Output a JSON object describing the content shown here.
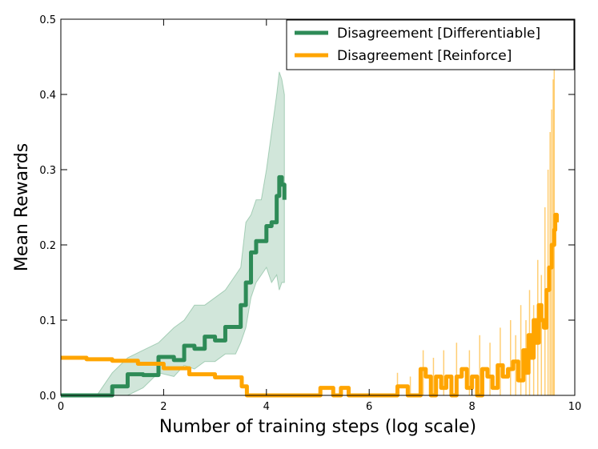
{
  "chart_data": {
    "type": "line",
    "title": "",
    "xlabel": "Number of training steps (log scale)",
    "ylabel": "Mean Rewards",
    "xlim": [
      0,
      10
    ],
    "ylim": [
      0,
      0.5
    ],
    "xticks": [
      0,
      2,
      4,
      6,
      8,
      10
    ],
    "yticks": [
      0.0,
      0.1,
      0.2,
      0.3,
      0.4,
      0.5
    ],
    "xtick_labels": [
      "0",
      "2",
      "4",
      "6",
      "8",
      "10"
    ],
    "ytick_labels": [
      "0.0",
      "0.1",
      "0.2",
      "0.3",
      "0.4",
      "0.5"
    ],
    "grid": false,
    "legend_position": "top-right",
    "series": [
      {
        "name": "Disagreement [Differentiable]",
        "color": "#2e8b57",
        "x": [
          0.0,
          0.7,
          1.0,
          1.3,
          1.6,
          1.9,
          2.2,
          2.4,
          2.6,
          2.8,
          3.0,
          3.2,
          3.4,
          3.5,
          3.6,
          3.7,
          3.8,
          3.9,
          4.0,
          4.1,
          4.2,
          4.25,
          4.3,
          4.35
        ],
        "y": [
          0.0,
          0.0,
          0.012,
          0.028,
          0.027,
          0.051,
          0.047,
          0.066,
          0.062,
          0.078,
          0.073,
          0.091,
          0.091,
          0.12,
          0.15,
          0.19,
          0.205,
          0.205,
          0.225,
          0.23,
          0.265,
          0.29,
          0.28,
          0.26
        ],
        "band_upper": [
          0.0,
          0.0,
          0.03,
          0.05,
          0.06,
          0.07,
          0.09,
          0.1,
          0.12,
          0.12,
          0.13,
          0.14,
          0.16,
          0.17,
          0.23,
          0.24,
          0.26,
          0.26,
          0.3,
          0.35,
          0.4,
          0.43,
          0.42,
          0.4
        ],
        "band_lower": [
          0.0,
          0.0,
          0.0,
          0.0,
          0.01,
          0.03,
          0.025,
          0.04,
          0.035,
          0.045,
          0.045,
          0.055,
          0.055,
          0.07,
          0.09,
          0.13,
          0.15,
          0.16,
          0.17,
          0.15,
          0.16,
          0.14,
          0.15,
          0.15
        ]
      },
      {
        "name": "Disagreement [Reinforce]",
        "color": "#ffa500",
        "x": [
          0.0,
          0.5,
          1.0,
          1.5,
          2.0,
          2.5,
          3.0,
          3.3,
          3.5,
          3.52,
          3.6,
          3.62,
          4.0,
          4.5,
          5.0,
          5.05,
          5.25,
          5.3,
          5.4,
          5.45,
          5.55,
          5.6,
          6.5,
          6.55,
          6.7,
          6.75,
          6.95,
          7.0,
          7.1,
          7.2,
          7.3,
          7.4,
          7.5,
          7.6,
          7.7,
          7.8,
          7.9,
          8.0,
          8.1,
          8.2,
          8.3,
          8.4,
          8.5,
          8.6,
          8.7,
          8.8,
          8.9,
          9.0,
          9.05,
          9.1,
          9.15,
          9.2,
          9.25,
          9.3,
          9.35,
          9.4,
          9.45,
          9.5,
          9.55,
          9.6,
          9.62,
          9.65
        ],
        "y": [
          0.05,
          0.048,
          0.046,
          0.042,
          0.036,
          0.028,
          0.024,
          0.024,
          0.024,
          0.012,
          0.012,
          0.0,
          0.0,
          0.0,
          0.0,
          0.01,
          0.01,
          0.0,
          0.0,
          0.01,
          0.01,
          0.0,
          0.0,
          0.012,
          0.012,
          0.0,
          0.0,
          0.035,
          0.025,
          0.0,
          0.025,
          0.01,
          0.025,
          0.0,
          0.025,
          0.035,
          0.01,
          0.025,
          0.0,
          0.035,
          0.025,
          0.01,
          0.04,
          0.025,
          0.035,
          0.045,
          0.02,
          0.06,
          0.03,
          0.08,
          0.05,
          0.1,
          0.07,
          0.12,
          0.1,
          0.09,
          0.14,
          0.17,
          0.2,
          0.22,
          0.24,
          0.23
        ],
        "spikes_x": [
          6.55,
          6.8,
          7.05,
          7.25,
          7.45,
          7.7,
          7.95,
          8.15,
          8.35,
          8.55,
          8.75,
          8.85,
          8.95,
          9.05,
          9.12,
          9.2,
          9.28,
          9.35,
          9.42,
          9.48,
          9.52,
          9.55,
          9.58,
          9.6
        ],
        "spikes_y": [
          0.03,
          0.025,
          0.06,
          0.05,
          0.06,
          0.07,
          0.06,
          0.08,
          0.07,
          0.09,
          0.1,
          0.08,
          0.12,
          0.1,
          0.14,
          0.12,
          0.18,
          0.16,
          0.25,
          0.3,
          0.35,
          0.38,
          0.42,
          0.44
        ]
      }
    ]
  }
}
